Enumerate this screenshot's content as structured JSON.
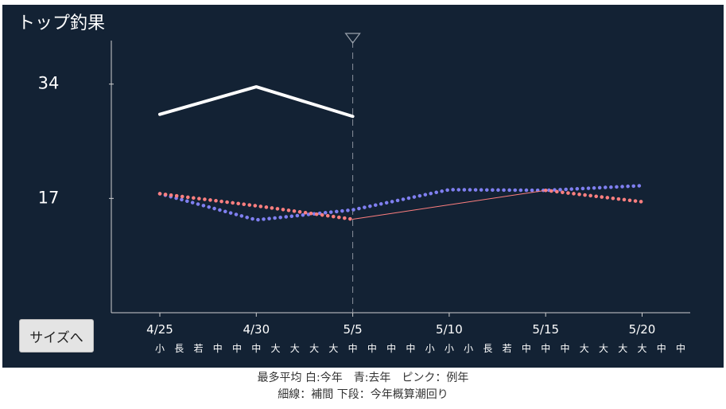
{
  "chart_data": {
    "type": "line",
    "title": "トップ釣果",
    "x": [
      "4/25",
      "4/30",
      "5/5",
      "5/10",
      "5/15",
      "5/20"
    ],
    "ylabel_ticks": [
      "34",
      "17"
    ],
    "ytick_values": [
      34,
      17
    ],
    "ylim": [
      0,
      40
    ],
    "today_marker": "5/5",
    "series": [
      {
        "name": "今年",
        "color": "#ffffff",
        "style": "solid",
        "points": [
          {
            "x": "4/25",
            "y": 29.5
          },
          {
            "x": "4/30",
            "y": 33.6
          },
          {
            "x": "5/5",
            "y": 29.2
          }
        ]
      },
      {
        "name": "去年",
        "color": "#7f7ff0",
        "style": "dotted",
        "points": [
          {
            "x": "4/25",
            "y": 17.7
          },
          {
            "x": "4/30",
            "y": 13.8
          },
          {
            "x": "5/5",
            "y": 15.3
          },
          {
            "x": "5/10",
            "y": 18.3
          },
          {
            "x": "5/15",
            "y": 18.2
          },
          {
            "x": "5/20",
            "y": 18.9
          }
        ]
      },
      {
        "name": "例年",
        "color": "#ff7f7f",
        "style": "dotted",
        "points": [
          {
            "x": "4/25",
            "y": 17.7
          },
          {
            "x": "4/30",
            "y": 15.9
          },
          {
            "x": "5/5",
            "y": 13.9
          }
        ]
      },
      {
        "name": "例年",
        "color": "#ff7f7f",
        "style": "thin",
        "points": [
          {
            "x": "5/5",
            "y": 13.9
          },
          {
            "x": "5/15",
            "y": 18.2
          }
        ]
      },
      {
        "name": "例年",
        "color": "#ff7f7f",
        "style": "dotted",
        "points": [
          {
            "x": "5/15",
            "y": 18.2
          },
          {
            "x": "5/20",
            "y": 16.5
          }
        ]
      }
    ],
    "grid": false,
    "legend": "bottom"
  },
  "tide_row": [
    "小",
    "長",
    "若",
    "中",
    "中",
    "中",
    "大",
    "大",
    "大",
    "大",
    "中",
    "中",
    "中",
    "中",
    "小",
    "小",
    "小",
    "長",
    "若",
    "中",
    "中",
    "中",
    "大",
    "大",
    "大",
    "大",
    "中",
    "中"
  ],
  "button": {
    "label": "サイズへ"
  },
  "legend_text": {
    "line1": "最多平均 白:今年　青:去年　ピンク：例年",
    "line2": "細線：補間 下段：今年概算潮回り"
  },
  "colors": {
    "background": "#132234",
    "axis": "#cfcfcf",
    "text": "#ffffff"
  }
}
